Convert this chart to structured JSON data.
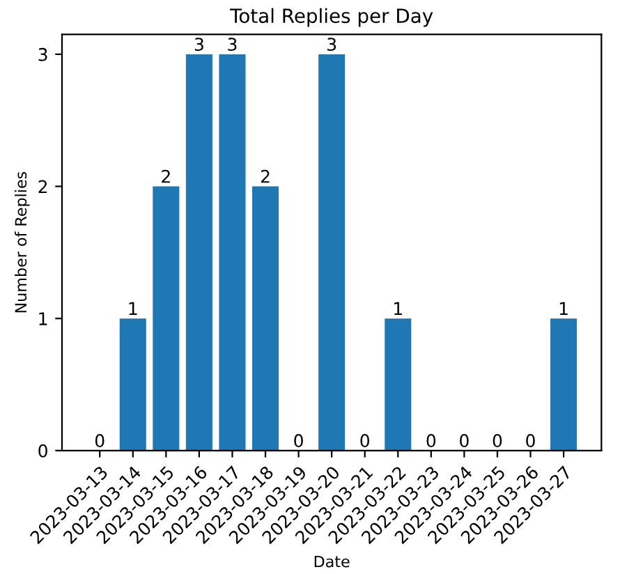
{
  "chart_data": {
    "type": "bar",
    "title": "Total Replies per Day",
    "xlabel": "Date",
    "ylabel": "Number of Replies",
    "categories": [
      "2023-03-13",
      "2023-03-14",
      "2023-03-15",
      "2023-03-16",
      "2023-03-17",
      "2023-03-18",
      "2023-03-19",
      "2023-03-20",
      "2023-03-21",
      "2023-03-22",
      "2023-03-23",
      "2023-03-24",
      "2023-03-25",
      "2023-03-26",
      "2023-03-27"
    ],
    "values": [
      0,
      1,
      2,
      3,
      3,
      2,
      0,
      3,
      0,
      1,
      0,
      0,
      0,
      0,
      1
    ],
    "color": "#1f77b4",
    "ylim": [
      0,
      3.15
    ],
    "yticks": [
      0,
      1,
      2,
      3
    ],
    "data_labels": true,
    "grid": false
  }
}
